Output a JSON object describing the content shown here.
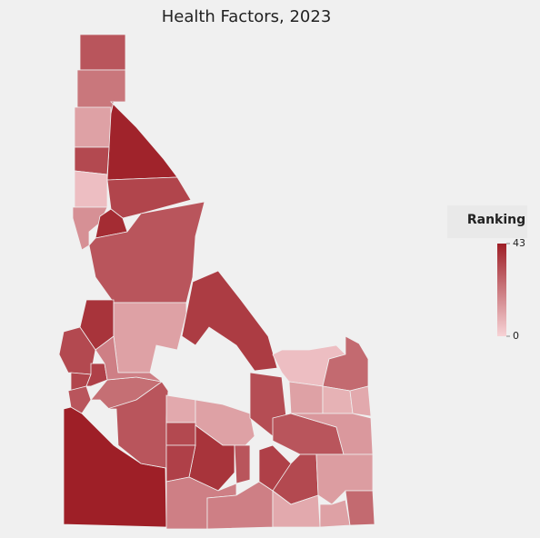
{
  "chart_data": {
    "type": "choropleth",
    "title": "Health Factors, 2023",
    "values": [
      30,
      22,
      12,
      42,
      33,
      5,
      34,
      16,
      40,
      30,
      38,
      33,
      12,
      36,
      34,
      35,
      30,
      24,
      20,
      43,
      30,
      10,
      12,
      33,
      38,
      35,
      20,
      20,
      30,
      35,
      32,
      5,
      25,
      12,
      8,
      10,
      30,
      14,
      33,
      10,
      13,
      12,
      25
    ],
    "legend": {
      "title": "Ranking",
      "range": [
        0,
        43
      ],
      "ticks": [
        0,
        43
      ]
    },
    "colors": {
      "low": "#f7d3d6",
      "high": "#9e1f27"
    }
  }
}
